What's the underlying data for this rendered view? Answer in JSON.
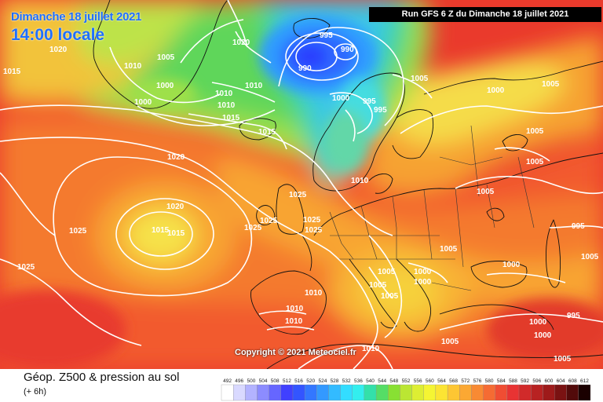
{
  "header": {
    "date": "Dimanche 18 juillet 2021",
    "time": "14:00 locale",
    "run": "Run GFS 6 Z du Dimanche 18 juillet 2021"
  },
  "copyright": "Copyright © 2021 Meteociel.fr",
  "legend": {
    "title": "Géop. Z500 & pression au sol",
    "subtitle": "(+ 6h)",
    "scale_values": [
      "492",
      "496",
      "500",
      "504",
      "508",
      "512",
      "516",
      "520",
      "524",
      "528",
      "532",
      "536",
      "540",
      "544",
      "548",
      "552",
      "556",
      "560",
      "564",
      "568",
      "572",
      "576",
      "580",
      "584",
      "588",
      "592",
      "596",
      "600",
      "604",
      "608",
      "612"
    ],
    "scale_colors": [
      "#ffffff",
      "#d9d9ff",
      "#b3b3ff",
      "#8c8cff",
      "#6666ff",
      "#4040ff",
      "#3355ff",
      "#3377ff",
      "#3399ff",
      "#33bbff",
      "#33ddff",
      "#33eeee",
      "#33e0aa",
      "#55dd66",
      "#88e033",
      "#bbe633",
      "#ddee33",
      "#f5f533",
      "#fce433",
      "#fdc633",
      "#fba833",
      "#f88a33",
      "#f56b33",
      "#f04d33",
      "#e83333",
      "#d12a2a",
      "#b82222",
      "#9e1a1a",
      "#7a1212",
      "#520a0a",
      "#1a0000"
    ]
  },
  "pressure_labels": [
    {
      "text": "1020",
      "id": "a1"
    },
    {
      "text": "1015",
      "id": "a2"
    },
    {
      "text": "1010",
      "id": "a3"
    },
    {
      "text": "1005",
      "id": "a4"
    },
    {
      "text": "1000",
      "id": "a5"
    },
    {
      "text": "1000",
      "id": "a6"
    },
    {
      "text": "1020",
      "id": "a7"
    },
    {
      "text": "1010",
      "id": "a8"
    },
    {
      "text": "1010",
      "id": "a9"
    },
    {
      "text": "1010",
      "id": "a10"
    },
    {
      "text": "1015",
      "id": "a11"
    },
    {
      "text": "1015",
      "id": "a12"
    },
    {
      "text": "995",
      "id": "a13"
    },
    {
      "text": "990",
      "id": "a14"
    },
    {
      "text": "990",
      "id": "a15"
    },
    {
      "text": "1005",
      "id": "a16"
    },
    {
      "text": "1000",
      "id": "a17"
    },
    {
      "text": "995",
      "id": "a18"
    },
    {
      "text": "995",
      "id": "a19"
    },
    {
      "text": "1020",
      "id": "a20"
    },
    {
      "text": "1010",
      "id": "a21"
    },
    {
      "text": "1025",
      "id": "a22"
    },
    {
      "text": "1020",
      "id": "a23"
    },
    {
      "text": "1015",
      "id": "a24"
    },
    {
      "text": "1015",
      "id": "a25"
    },
    {
      "text": "1025",
      "id": "a26"
    },
    {
      "text": "1025",
      "id": "a27"
    },
    {
      "text": "1025",
      "id": "a28"
    },
    {
      "text": "1025",
      "id": "a29"
    },
    {
      "text": "1025",
      "id": "a30"
    },
    {
      "text": "1025",
      "id": "a31"
    },
    {
      "text": "1005",
      "id": "a32"
    },
    {
      "text": "1005",
      "id": "a33"
    },
    {
      "text": "1005",
      "id": "a34"
    },
    {
      "text": "1005",
      "id": "a35"
    },
    {
      "text": "1005",
      "id": "a36"
    },
    {
      "text": "995",
      "id": "a37"
    },
    {
      "text": "1000",
      "id": "a38"
    },
    {
      "text": "1000",
      "id": "a39"
    },
    {
      "text": "1000",
      "id": "a40"
    },
    {
      "text": "1005",
      "id": "a41"
    },
    {
      "text": "1005",
      "id": "a42"
    },
    {
      "text": "1000",
      "id": "a43"
    },
    {
      "text": "995",
      "id": "a44"
    },
    {
      "text": "1010",
      "id": "a45"
    },
    {
      "text": "1010",
      "id": "a46"
    },
    {
      "text": "1010",
      "id": "a47"
    },
    {
      "text": "1010",
      "id": "a48"
    },
    {
      "text": "1005",
      "id": "a49"
    },
    {
      "text": "1000",
      "id": "a50"
    },
    {
      "text": "1005",
      "id": "a51"
    },
    {
      "text": "1000",
      "id": "a52"
    },
    {
      "text": "1005",
      "id": "a53"
    },
    {
      "text": "1005",
      "id": "a54"
    }
  ]
}
